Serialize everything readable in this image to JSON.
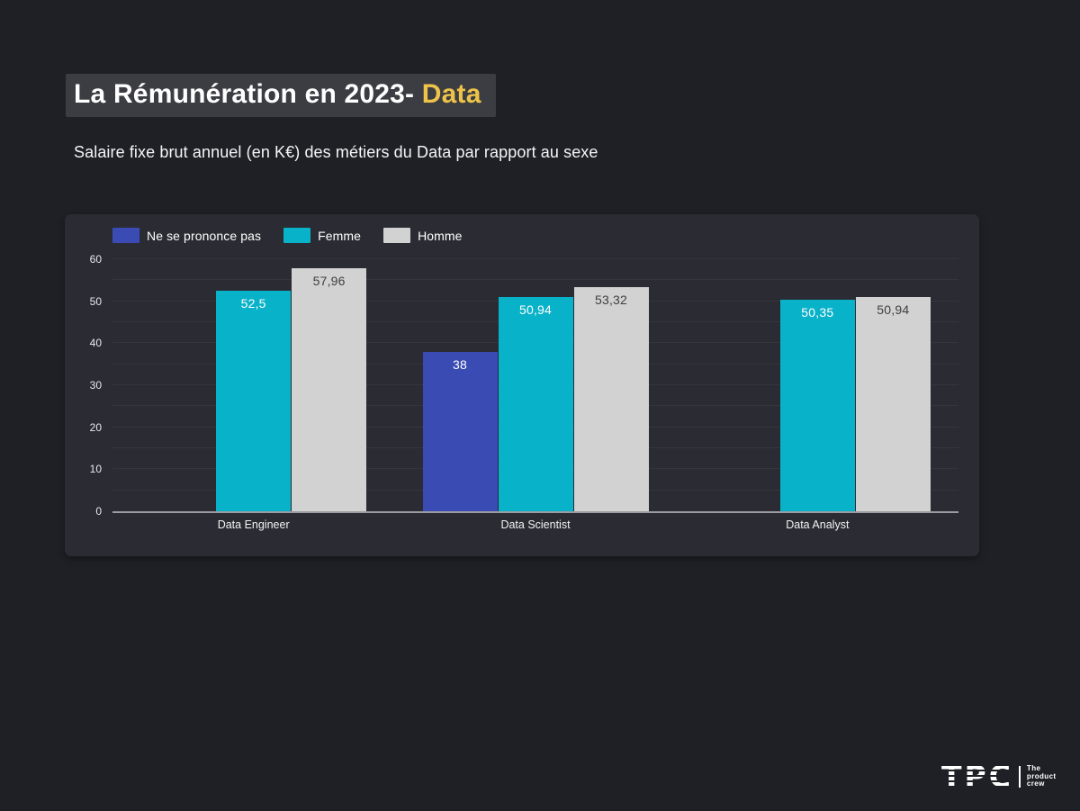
{
  "page": {
    "title_main": "La Rémunération en 2023-",
    "title_accent": "Data",
    "subtitle": "Salaire fixe brut annuel (en K€) des métiers du Data par rapport au sexe"
  },
  "colors": {
    "page_bg": "#1f2026",
    "panel_bg": "#2b2c33",
    "title_box_bg": "#3c3d42",
    "accent_yellow": "#edc349",
    "axis_line": "#9b9ba1",
    "blue": "#3a4bb4",
    "cyan": "#08b2c8",
    "gray": "#d2d2d2"
  },
  "chart_data": {
    "type": "bar",
    "title": "Salaire fixe brut annuel (en K€) des métiers du Data par rapport au sexe",
    "categories": [
      "Data Engineer",
      "Data Scientist",
      "Data Analyst"
    ],
    "series": [
      {
        "name": "Ne se prononce pas",
        "color": "#3a4bb4",
        "label_color": "#ffffff",
        "values": [
          null,
          38,
          null
        ],
        "labels": [
          "",
          "38",
          ""
        ]
      },
      {
        "name": "Femme",
        "color": "#08b2c8",
        "label_color": "#ffffff",
        "values": [
          52.5,
          50.94,
          50.35
        ],
        "labels": [
          "52,5",
          "50,94",
          "50,35"
        ]
      },
      {
        "name": "Homme",
        "color": "#d2d2d2",
        "label_color": "#3f3f3f",
        "values": [
          57.96,
          53.32,
          50.94
        ],
        "labels": [
          "57,96",
          "53,32",
          "50,94"
        ]
      }
    ],
    "xlabel": "",
    "ylabel": "",
    "ylim": [
      0,
      60
    ],
    "yticks": [
      0,
      10,
      20,
      30,
      40,
      50,
      60
    ],
    "grid_step": 5,
    "grid": true,
    "legend_position": "top-left"
  },
  "logo": {
    "tpc": "TPC",
    "tagline_lines": [
      "The",
      "product",
      "crew"
    ]
  }
}
